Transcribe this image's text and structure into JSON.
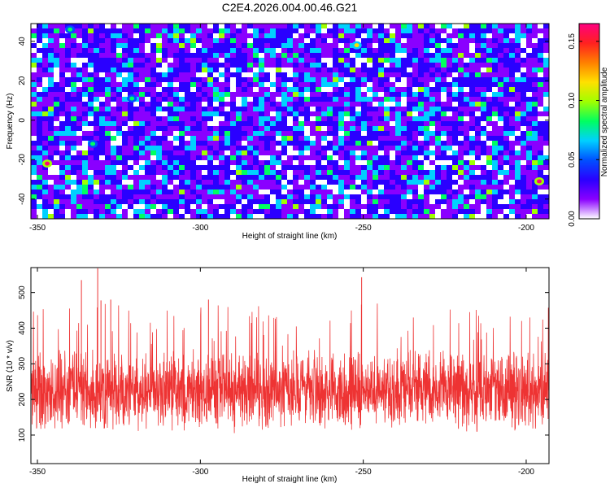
{
  "title": "C2E4.2026.004.00.46.G21",
  "colors": {
    "snr_line": "#ee3333",
    "colormap": [
      "#ffffff",
      "#8a00ff",
      "#2a00ff",
      "#0050ff",
      "#00d0ff",
      "#00ff60",
      "#a0ff00",
      "#ffe000",
      "#ff8000",
      "#ff2020",
      "#ff0080"
    ]
  },
  "chart_data": [
    {
      "type": "heatmap",
      "xlabel": "Height of straight line (km)",
      "ylabel": "Frequency (Hz)",
      "xlim": [
        -352,
        -193
      ],
      "ylim": [
        -50,
        49
      ],
      "xticks": [
        -350,
        -300,
        -250,
        -200
      ],
      "yticks": [
        -40,
        -20,
        0,
        20,
        40
      ],
      "colorbar": {
        "label": "Normalized spectral amplitude",
        "range": [
          0.0,
          0.165
        ],
        "ticks": [
          "0.00",
          "0.05",
          "0.10",
          "0.15"
        ],
        "tick_values": [
          0.0,
          0.05,
          0.1,
          0.15
        ]
      },
      "hotspots": [
        {
          "x": -347,
          "y": -22,
          "value": 0.165
        },
        {
          "x": -196,
          "y": -31,
          "value": 0.165
        },
        {
          "x": -333,
          "y": -12,
          "value": 0.09
        },
        {
          "x": -321,
          "y": 11,
          "value": 0.08
        },
        {
          "x": -252,
          "y": 38,
          "value": 0.11
        },
        {
          "x": -340,
          "y": 46,
          "value": 0.09
        }
      ]
    },
    {
      "type": "line",
      "xlabel": "Height of straight line (km)",
      "ylabel": "SNR (10 * v/v)",
      "xlim": [
        -352,
        -193
      ],
      "ylim": [
        20,
        570
      ],
      "xticks": [
        -350,
        -300,
        -250,
        -200
      ],
      "yticks": [
        100,
        200,
        300,
        400,
        500
      ],
      "baseline_range": [
        50,
        400
      ],
      "mean": 170,
      "peaks": [
        {
          "x": -336.5,
          "y": 535
        },
        {
          "x": -331.5,
          "y": 568
        },
        {
          "x": -250.5,
          "y": 543
        },
        {
          "x": -327.5,
          "y": 480
        },
        {
          "x": -330.5,
          "y": 478
        },
        {
          "x": -297.5,
          "y": 480
        }
      ]
    }
  ]
}
